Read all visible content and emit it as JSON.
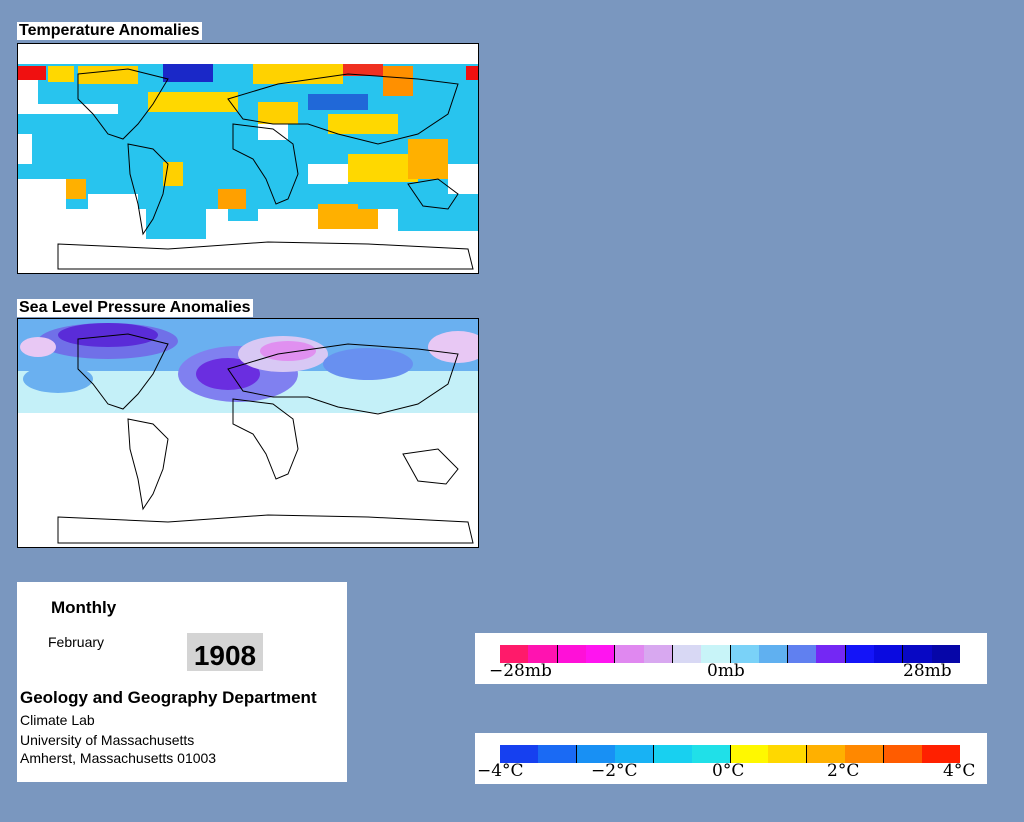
{
  "panels": {
    "temperature": {
      "title": "Temperature Anomalies"
    },
    "pressure": {
      "title": "Sea Level Pressure Anomalies"
    }
  },
  "info": {
    "frequency": "Monthly",
    "month": "February",
    "year": "1908",
    "department": "Geology and Geography Department",
    "lab": "Climate Lab",
    "university": "University of Massachusetts",
    "address": "Amherst, Massachusetts 01003"
  },
  "pressure_legend": {
    "labels": {
      "left": "−28mb",
      "center": "0mb",
      "right": "28mb"
    },
    "colors": [
      "#ff1a6a",
      "#ff13b0",
      "#ff10d8",
      "#ff14f0",
      "#e088f0",
      "#d8a8f0",
      "#d8d8f4",
      "#c8f4f8",
      "#7ad2f8",
      "#60b0f0",
      "#6080f0",
      "#7428f4",
      "#1414f8",
      "#0a0ae0",
      "#0808c4",
      "#0606a8"
    ]
  },
  "temperature_legend": {
    "labels": {
      "l1": "−4°C",
      "l2": "−2°C",
      "l3": "0°C",
      "l4": "2°C",
      "l5": "4°C"
    },
    "colors": [
      "#1640f0",
      "#1a6af4",
      "#1890f4",
      "#18b2f4",
      "#18d0f0",
      "#20e0e8",
      "#fff800",
      "#ffd800",
      "#ffb000",
      "#ff8800",
      "#ff5c00",
      "#ff2000"
    ]
  },
  "colors": {
    "background": "#7a97bf",
    "panel": "#ffffff"
  }
}
